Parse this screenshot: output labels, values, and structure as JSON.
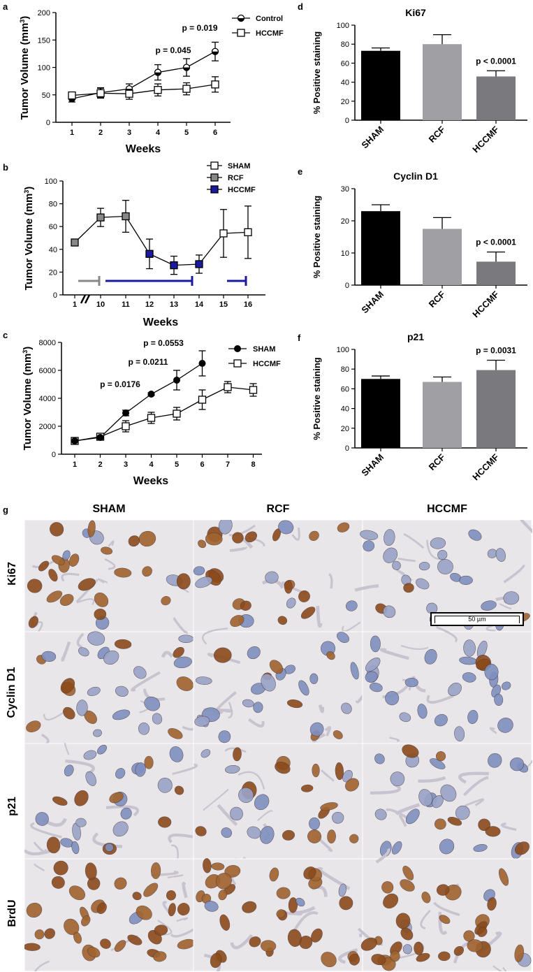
{
  "chart_data": [
    {
      "panel": "a",
      "type": "line",
      "xlabel": "Weeks",
      "ylabel": "Tumor  Volume (mm³)",
      "x": [
        1,
        2,
        3,
        4,
        5,
        6
      ],
      "ylim": [
        0,
        200
      ],
      "yticks": [
        0,
        50,
        100,
        150,
        200
      ],
      "series": [
        {
          "name": "Control",
          "marker": "circle-half",
          "values": [
            43,
            54,
            61,
            91,
            100,
            129
          ],
          "err": [
            6,
            9,
            9,
            14,
            16,
            17
          ]
        },
        {
          "name": "HCCMF",
          "marker": "square-open",
          "values": [
            49,
            53,
            52,
            59,
            61,
            69
          ],
          "err": [
            6,
            9,
            10,
            11,
            11,
            14
          ]
        }
      ],
      "annotations": [
        {
          "text": "p = 0.045",
          "x": 4.9
        },
        {
          "text": "p = 0.019",
          "x": 5.9
        }
      ]
    },
    {
      "panel": "b",
      "type": "line",
      "xlabel": "Weeks",
      "ylabel": "Tumor  Volume (mm³)",
      "xticks": [
        "1",
        "10",
        "11",
        "12",
        "13",
        "14",
        "15",
        "16"
      ],
      "ylim": [
        0,
        100
      ],
      "yticks": [
        0,
        20,
        40,
        60,
        80,
        100
      ],
      "values": [
        46,
        68,
        69,
        36,
        26,
        27,
        54,
        55
      ],
      "err": [
        3,
        8,
        14,
        13,
        8,
        8,
        21,
        23
      ],
      "colors": [
        "#888888",
        "#888888",
        "#888888",
        "#1a1a9e",
        "#1a1a9e",
        "#1a1a9e",
        "#ffffff",
        "#ffffff"
      ],
      "legend": [
        {
          "name": "SHAM",
          "fill": "#ffffff"
        },
        {
          "name": "RCF",
          "fill": "#888888"
        },
        {
          "name": "HCCMF",
          "fill": "#1a1a9e"
        }
      ]
    },
    {
      "panel": "c",
      "type": "line",
      "xlabel": "Weeks",
      "ylabel": "Tumor  Volume (mm³)",
      "x": [
        1,
        2,
        3,
        4,
        5,
        6,
        7,
        8
      ],
      "ylim": [
        0,
        8000
      ],
      "yticks": [
        0,
        2000,
        4000,
        6000,
        8000
      ],
      "series": [
        {
          "name": "SHAM",
          "marker": "circle-filled",
          "x": [
            1,
            2,
            3,
            4,
            5,
            6
          ],
          "values": [
            950,
            1200,
            2950,
            4300,
            5300,
            6500
          ],
          "err": [
            100,
            150,
            200,
            100,
            700,
            900
          ]
        },
        {
          "name": "HCCMF",
          "marker": "square-open",
          "x": [
            1,
            2,
            3,
            4,
            5,
            6,
            7,
            8
          ],
          "values": [
            950,
            1250,
            2000,
            2600,
            2900,
            3900,
            4800,
            4600
          ],
          "err": [
            100,
            150,
            400,
            400,
            450,
            700,
            400,
            450
          ]
        }
      ],
      "annotations": [
        {
          "text": "p = 0.0176"
        },
        {
          "text": "p = 0.0211"
        },
        {
          "text": "p = 0.0553"
        }
      ]
    },
    {
      "panel": "d",
      "type": "bar",
      "title": "Ki67",
      "ylabel": "% Positive staining",
      "categories": [
        "SHAM",
        "RCF",
        "HCCMF"
      ],
      "values": [
        73,
        80,
        46
      ],
      "err": [
        3,
        10,
        6
      ],
      "ylim": [
        0,
        100
      ],
      "yticks": [
        0,
        20,
        40,
        60,
        80,
        100
      ],
      "annotation": "p < 0.0001"
    },
    {
      "panel": "e",
      "type": "bar",
      "title": "Cyclin  D1",
      "ylabel": "% Positive staining",
      "categories": [
        "SHAM",
        "RCF",
        "HCCMF"
      ],
      "values": [
        23,
        17.5,
        7.3
      ],
      "err": [
        2,
        3.5,
        3
      ],
      "ylim": [
        0,
        30
      ],
      "yticks": [
        0,
        10,
        20,
        30
      ],
      "annotation": "p < 0.0001"
    },
    {
      "panel": "f",
      "type": "bar",
      "title": "p21",
      "ylabel": "% Positive staining",
      "categories": [
        "SHAM",
        "RCF",
        "HCCMF"
      ],
      "values": [
        70,
        67,
        79
      ],
      "err": [
        3,
        5,
        10
      ],
      "ylim": [
        0,
        100
      ],
      "yticks": [
        0,
        20,
        40,
        60,
        80,
        100
      ],
      "annotation": "p = 0.0031"
    }
  ],
  "bar_colors": [
    "#000000",
    "#a0a0a4",
    "#7a7a7e"
  ],
  "panel_letters": {
    "a": "a",
    "b": "b",
    "c": "c",
    "d": "d",
    "e": "e",
    "f": "f",
    "g": "g"
  },
  "micrographs": {
    "columns": [
      "SHAM",
      "RCF",
      "HCCMF"
    ],
    "rows": [
      "Ki67",
      "Cyclin D1",
      "p21",
      "BrdU"
    ],
    "scale_bar": "50 µm",
    "stain_brown": "#8b4a1a",
    "stain_blue": "#7f8fbf"
  }
}
